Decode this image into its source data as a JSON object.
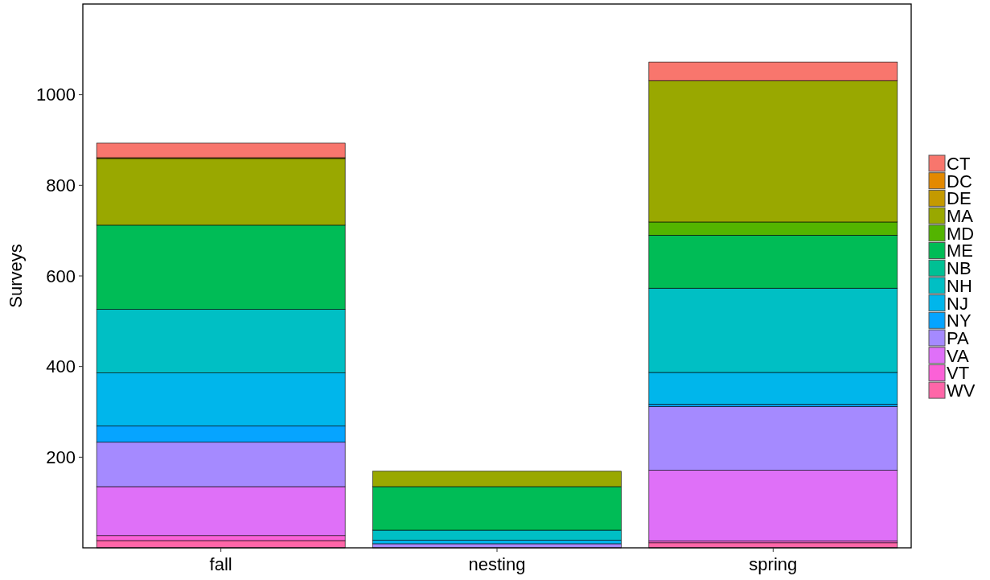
{
  "chart_data": {
    "type": "bar",
    "ylabel": "Surveys",
    "categories": [
      "fall",
      "nesting",
      "spring"
    ],
    "stacked": true,
    "ylim": [
      0,
      1200
    ],
    "yticks": [
      200,
      400,
      600,
      800,
      1000
    ],
    "grid": false,
    "legend": "right",
    "series": [
      {
        "name": "WV",
        "color": "#ff66a8",
        "values": [
          16,
          null,
          11
        ]
      },
      {
        "name": "VT",
        "color": "#fb61d7",
        "values": [
          11,
          null,
          4
        ]
      },
      {
        "name": "VA",
        "color": "#df70f8",
        "values": [
          108,
          null,
          156
        ]
      },
      {
        "name": "PA",
        "color": "#a58aff",
        "values": [
          98,
          9,
          141
        ]
      },
      {
        "name": "NY",
        "color": "#06a4ff",
        "values": [
          36,
          null,
          5
        ]
      },
      {
        "name": "NJ",
        "color": "#00b6eb",
        "values": [
          117,
          8,
          70
        ]
      },
      {
        "name": "NH",
        "color": "#00bfc4",
        "values": [
          140,
          22,
          186
        ]
      },
      {
        "name": "NB",
        "color": "#00c094",
        "values": [
          null,
          null,
          null
        ]
      },
      {
        "name": "ME",
        "color": "#00bc56",
        "values": [
          186,
          96,
          117
        ]
      },
      {
        "name": "MD",
        "color": "#53b400",
        "values": [
          null,
          null,
          29
        ]
      },
      {
        "name": "MA",
        "color": "#99a800",
        "values": [
          147,
          34,
          312
        ]
      },
      {
        "name": "DE",
        "color": "#c49a00",
        "values": [
          2,
          null,
          null
        ]
      },
      {
        "name": "DC",
        "color": "#e38900",
        "values": [
          null,
          null,
          null
        ]
      },
      {
        "name": "CT",
        "color": "#f8766d",
        "values": [
          32,
          null,
          41
        ]
      }
    ]
  }
}
